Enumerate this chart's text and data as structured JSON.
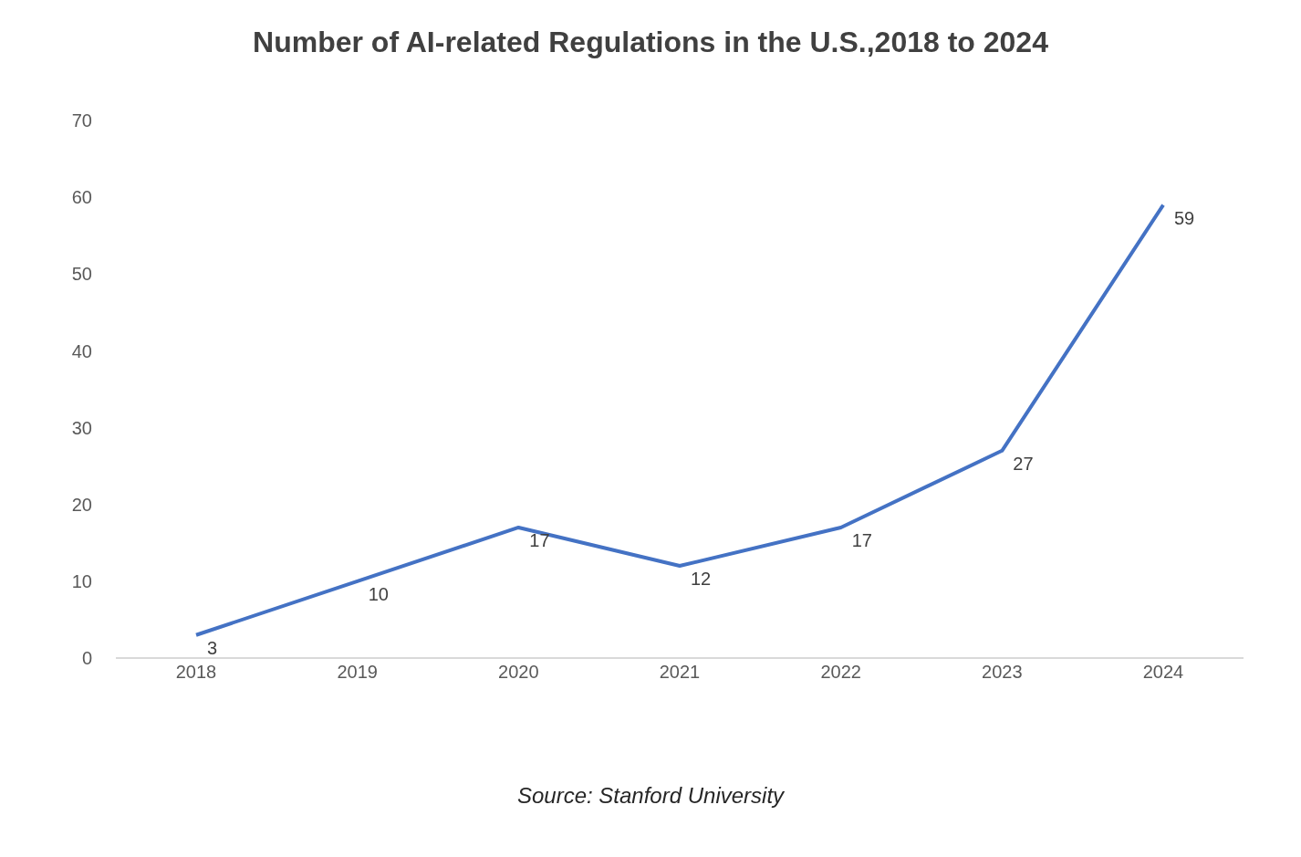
{
  "chart_data": {
    "type": "line",
    "title": "Number of AI-related Regulations in the U.S.,2018 to 2024",
    "categories": [
      "2018",
      "2019",
      "2020",
      "2021",
      "2022",
      "2023",
      "2024"
    ],
    "values": [
      3,
      10,
      17,
      12,
      17,
      27,
      59
    ],
    "color": "#4472c4",
    "ylim": [
      0,
      70
    ],
    "yticks": [
      0,
      10,
      20,
      30,
      40,
      50,
      60,
      70
    ],
    "data_labels": true,
    "marker": "none",
    "annotations": [
      "Source: Stanford University"
    ]
  }
}
